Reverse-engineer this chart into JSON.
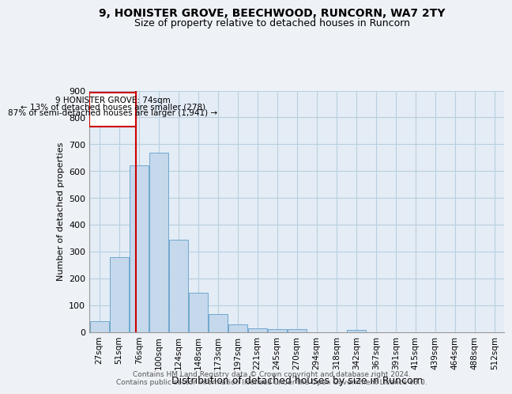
{
  "title1": "9, HONISTER GROVE, BEECHWOOD, RUNCORN, WA7 2TY",
  "title2": "Size of property relative to detached houses in Runcorn",
  "xlabel": "Distribution of detached houses by size in Runcorn",
  "ylabel": "Number of detached properties",
  "categories": [
    "27sqm",
    "51sqm",
    "76sqm",
    "100sqm",
    "124sqm",
    "148sqm",
    "173sqm",
    "197sqm",
    "221sqm",
    "245sqm",
    "270sqm",
    "294sqm",
    "318sqm",
    "342sqm",
    "367sqm",
    "391sqm",
    "415sqm",
    "439sqm",
    "464sqm",
    "488sqm",
    "512sqm"
  ],
  "values": [
    40,
    278,
    622,
    668,
    345,
    145,
    65,
    28,
    14,
    10,
    9,
    0,
    0,
    8,
    0,
    0,
    0,
    0,
    0,
    0,
    0
  ],
  "bar_color": "#c5d8ec",
  "bar_edge_color": "#6fa8d0",
  "grid_color": "#b8cfe0",
  "annotation_line_bin": 1.85,
  "annotation_text_line1": "9 HONISTER GROVE: 74sqm",
  "annotation_text_line2": "← 13% of detached houses are smaller (278)",
  "annotation_text_line3": "87% of semi-detached houses are larger (1,941) →",
  "annotation_box_color": "#cc0000",
  "ylim": [
    0,
    900
  ],
  "yticks": [
    0,
    100,
    200,
    300,
    400,
    500,
    600,
    700,
    800,
    900
  ],
  "footer1": "Contains HM Land Registry data © Crown copyright and database right 2024.",
  "footer2": "Contains public sector information licensed under the Open Government Licence v3.0.",
  "background_color": "#eef2f7",
  "plot_bg_color": "#e4ecf5"
}
